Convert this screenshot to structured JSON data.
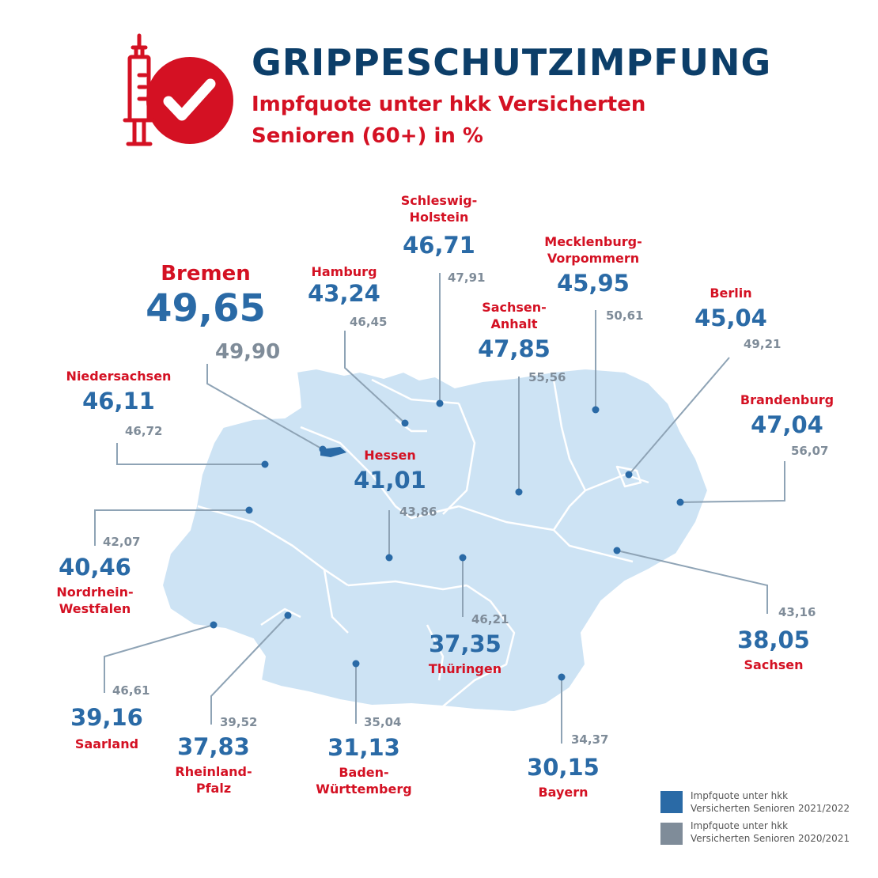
{
  "header": {
    "title": "GRIPPESCHUTZIMPFUNG",
    "subtitle_line1": "Impfquote unter hkk Versicherten",
    "subtitle_line2": "Senioren (60+) in %"
  },
  "icons": {
    "header_icon": "syringe-check-icon"
  },
  "colors": {
    "navy": "#0c3e69",
    "red": "#d41123",
    "blue_current": "#2a6aa6",
    "grey_previous": "#7f8c99",
    "map_fill": "#cde3f4"
  },
  "states": [
    {
      "id": "bremen",
      "name": "Bremen",
      "current": "49,65",
      "previous": "49,90"
    },
    {
      "id": "hamburg",
      "name": "Hamburg",
      "current": "43,24",
      "previous": "46,45"
    },
    {
      "id": "schleswig",
      "name": "Schleswig-Holstein",
      "name_line1": "Schleswig-",
      "name_line2": "Holstein",
      "current": "46,71",
      "previous": "47,91"
    },
    {
      "id": "mv",
      "name": "Mecklenburg-Vorpommern",
      "name_line1": "Mecklenburg-",
      "name_line2": "Vorpommern",
      "current": "45,95",
      "previous": "50,61"
    },
    {
      "id": "sa",
      "name": "Sachsen-Anhalt",
      "name_line1": "Sachsen-",
      "name_line2": "Anhalt",
      "current": "47,85",
      "previous": "55,56"
    },
    {
      "id": "berlin",
      "name": "Berlin",
      "current": "45,04",
      "previous": "49,21"
    },
    {
      "id": "brandenburg",
      "name": "Brandenburg",
      "current": "47,04",
      "previous": "56,07"
    },
    {
      "id": "niedersachsen",
      "name": "Niedersachsen",
      "current": "46,11",
      "previous": "46,72"
    },
    {
      "id": "hessen",
      "name": "Hessen",
      "current": "41,01",
      "previous": "43,86"
    },
    {
      "id": "nrw",
      "name": "Nordrhein-Westfalen",
      "name_line1": "Nordrhein-",
      "name_line2": "Westfalen",
      "current": "40,46",
      "previous": "42,07"
    },
    {
      "id": "thueringen",
      "name": "Thüringen",
      "current": "37,35",
      "previous": "46,21"
    },
    {
      "id": "sachsen",
      "name": "Sachsen",
      "current": "38,05",
      "previous": "43,16"
    },
    {
      "id": "saarland",
      "name": "Saarland",
      "current": "39,16",
      "previous": "46,61"
    },
    {
      "id": "rp",
      "name": "Rheinland-Pfalz",
      "name_line1": "Rheinland-",
      "name_line2": "Pfalz",
      "current": "37,83",
      "previous": "39,52"
    },
    {
      "id": "bw",
      "name": "Baden-Württemberg",
      "name_line1": "Baden-",
      "name_line2": "Württemberg",
      "current": "31,13",
      "previous": "35,04"
    },
    {
      "id": "bayern",
      "name": "Bayern",
      "current": "30,15",
      "previous": "34,37"
    }
  ],
  "legend": [
    {
      "line1": "Impfquote unter hkk",
      "line2": "Versicherten Senioren 2021/2022",
      "color": "#2a6aa6"
    },
    {
      "line1": "Impfquote unter hkk",
      "line2": "Versicherten Senioren 2020/2021",
      "color": "#7f8c99"
    }
  ]
}
